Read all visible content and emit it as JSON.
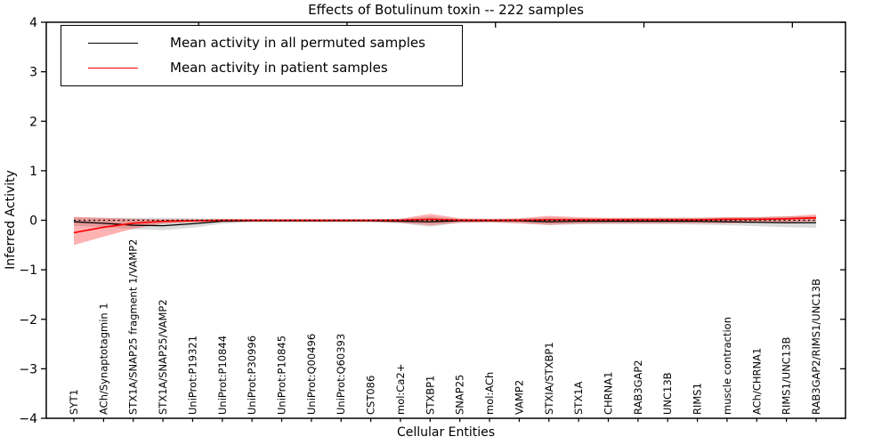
{
  "figure": {
    "title": "Effects of Botulinum toxin -- 222 samples",
    "xlabel": "Cellular Entities",
    "ylabel": "Inferred Activity"
  },
  "legend": {
    "position": "upper left",
    "entries": [
      {
        "label": "Mean activity in all permuted samples",
        "color": "#000000"
      },
      {
        "label": "Mean activity in patient samples",
        "color": "#ff0000"
      }
    ]
  },
  "chart_data": {
    "type": "line",
    "title": "Effects of Botulinum toxin -- 222 samples",
    "xlabel": "Cellular Entities",
    "ylabel": "Inferred Activity",
    "ylim": [
      -4,
      4
    ],
    "yticks": {
      "values": [
        4,
        3,
        2,
        1,
        0,
        -1,
        -2,
        -3,
        -4
      ],
      "labels": [
        "4",
        "3",
        "2",
        "1",
        "0",
        "−1",
        "−2",
        "−3",
        "−4"
      ]
    },
    "top_ticks_index": [
      4.2,
      9.2,
      14.2,
      19.2,
      24.2
    ],
    "grid": false,
    "legend_position": "upper left",
    "zero_reference_line": 0,
    "categories": [
      "SYT1",
      "ACh/Synaptotagmin 1",
      "STX1A/SNAP25 fragment 1/VAMP2",
      "STX1A/SNAP25/VAMP2",
      "UniProt:P19321",
      "UniProt:P10844",
      "UniProt:P30996",
      "UniProt:P10845",
      "UniProt:Q00496",
      "UniProt:Q60393",
      "CST086",
      "mol:Ca2+",
      "STXBP1",
      "SNAP25",
      "mol:ACh",
      "VAMP2",
      "STXIA/STXBP1",
      "STX1A",
      "CHRNA1",
      "RAB3GAP2",
      "UNC13B",
      "RIMS1",
      "muscle contraction",
      "ACh/CHRNA1",
      "RIMS1/UNC13B",
      "RAB3GAP2/RIMS1/UNC13B"
    ],
    "series": [
      {
        "name": "Mean activity in all permuted samples",
        "color": "#000000",
        "linewidth": 1.3,
        "values": [
          -0.03,
          -0.06,
          -0.1,
          -0.11,
          -0.07,
          -0.02,
          -0.01,
          -0.01,
          -0.01,
          -0.01,
          -0.01,
          -0.02,
          -0.03,
          -0.01,
          -0.01,
          -0.01,
          -0.03,
          -0.02,
          -0.02,
          -0.02,
          -0.02,
          -0.02,
          -0.03,
          -0.04,
          -0.05,
          -0.05
        ]
      },
      {
        "name": "Mean activity in patient samples",
        "color": "#ff0000",
        "linewidth": 1.7,
        "values": [
          -0.25,
          -0.14,
          -0.06,
          -0.02,
          -0.01,
          0.0,
          0.0,
          0.0,
          0.0,
          0.0,
          0.0,
          0.0,
          0.02,
          0.0,
          0.0,
          0.0,
          0.01,
          0.01,
          0.01,
          0.01,
          0.01,
          0.01,
          0.02,
          0.02,
          0.03,
          0.05
        ]
      }
    ],
    "bands": [
      {
        "name": "permuted-samples-range",
        "color": "#999999",
        "opacity": 0.35,
        "upper": [
          0.06,
          0.05,
          0.05,
          0.05,
          0.04,
          0.03,
          0.02,
          0.02,
          0.02,
          0.02,
          0.02,
          0.03,
          0.08,
          0.03,
          0.02,
          0.03,
          0.06,
          0.04,
          0.04,
          0.05,
          0.05,
          0.05,
          0.06,
          0.07,
          0.08,
          0.08
        ],
        "lower": [
          -0.11,
          -0.14,
          -0.18,
          -0.2,
          -0.15,
          -0.07,
          -0.04,
          -0.04,
          -0.04,
          -0.04,
          -0.04,
          -0.06,
          -0.13,
          -0.05,
          -0.04,
          -0.06,
          -0.1,
          -0.08,
          -0.08,
          -0.08,
          -0.08,
          -0.09,
          -0.1,
          -0.12,
          -0.14,
          -0.15
        ]
      },
      {
        "name": "patient-samples-range",
        "color": "#ff0000",
        "opacity": 0.3,
        "upper": [
          0.07,
          0.05,
          0.03,
          0.02,
          0.02,
          0.02,
          0.02,
          0.02,
          0.02,
          0.02,
          0.02,
          0.03,
          0.13,
          0.04,
          0.03,
          0.04,
          0.09,
          0.06,
          0.05,
          0.05,
          0.05,
          0.05,
          0.06,
          0.06,
          0.08,
          0.12
        ],
        "lower": [
          -0.5,
          -0.33,
          -0.17,
          -0.07,
          -0.04,
          -0.03,
          -0.03,
          -0.03,
          -0.03,
          -0.03,
          -0.03,
          -0.05,
          -0.1,
          -0.05,
          -0.04,
          -0.06,
          -0.09,
          -0.07,
          -0.06,
          -0.06,
          -0.06,
          -0.06,
          -0.06,
          -0.05,
          -0.04,
          -0.02
        ]
      }
    ]
  }
}
